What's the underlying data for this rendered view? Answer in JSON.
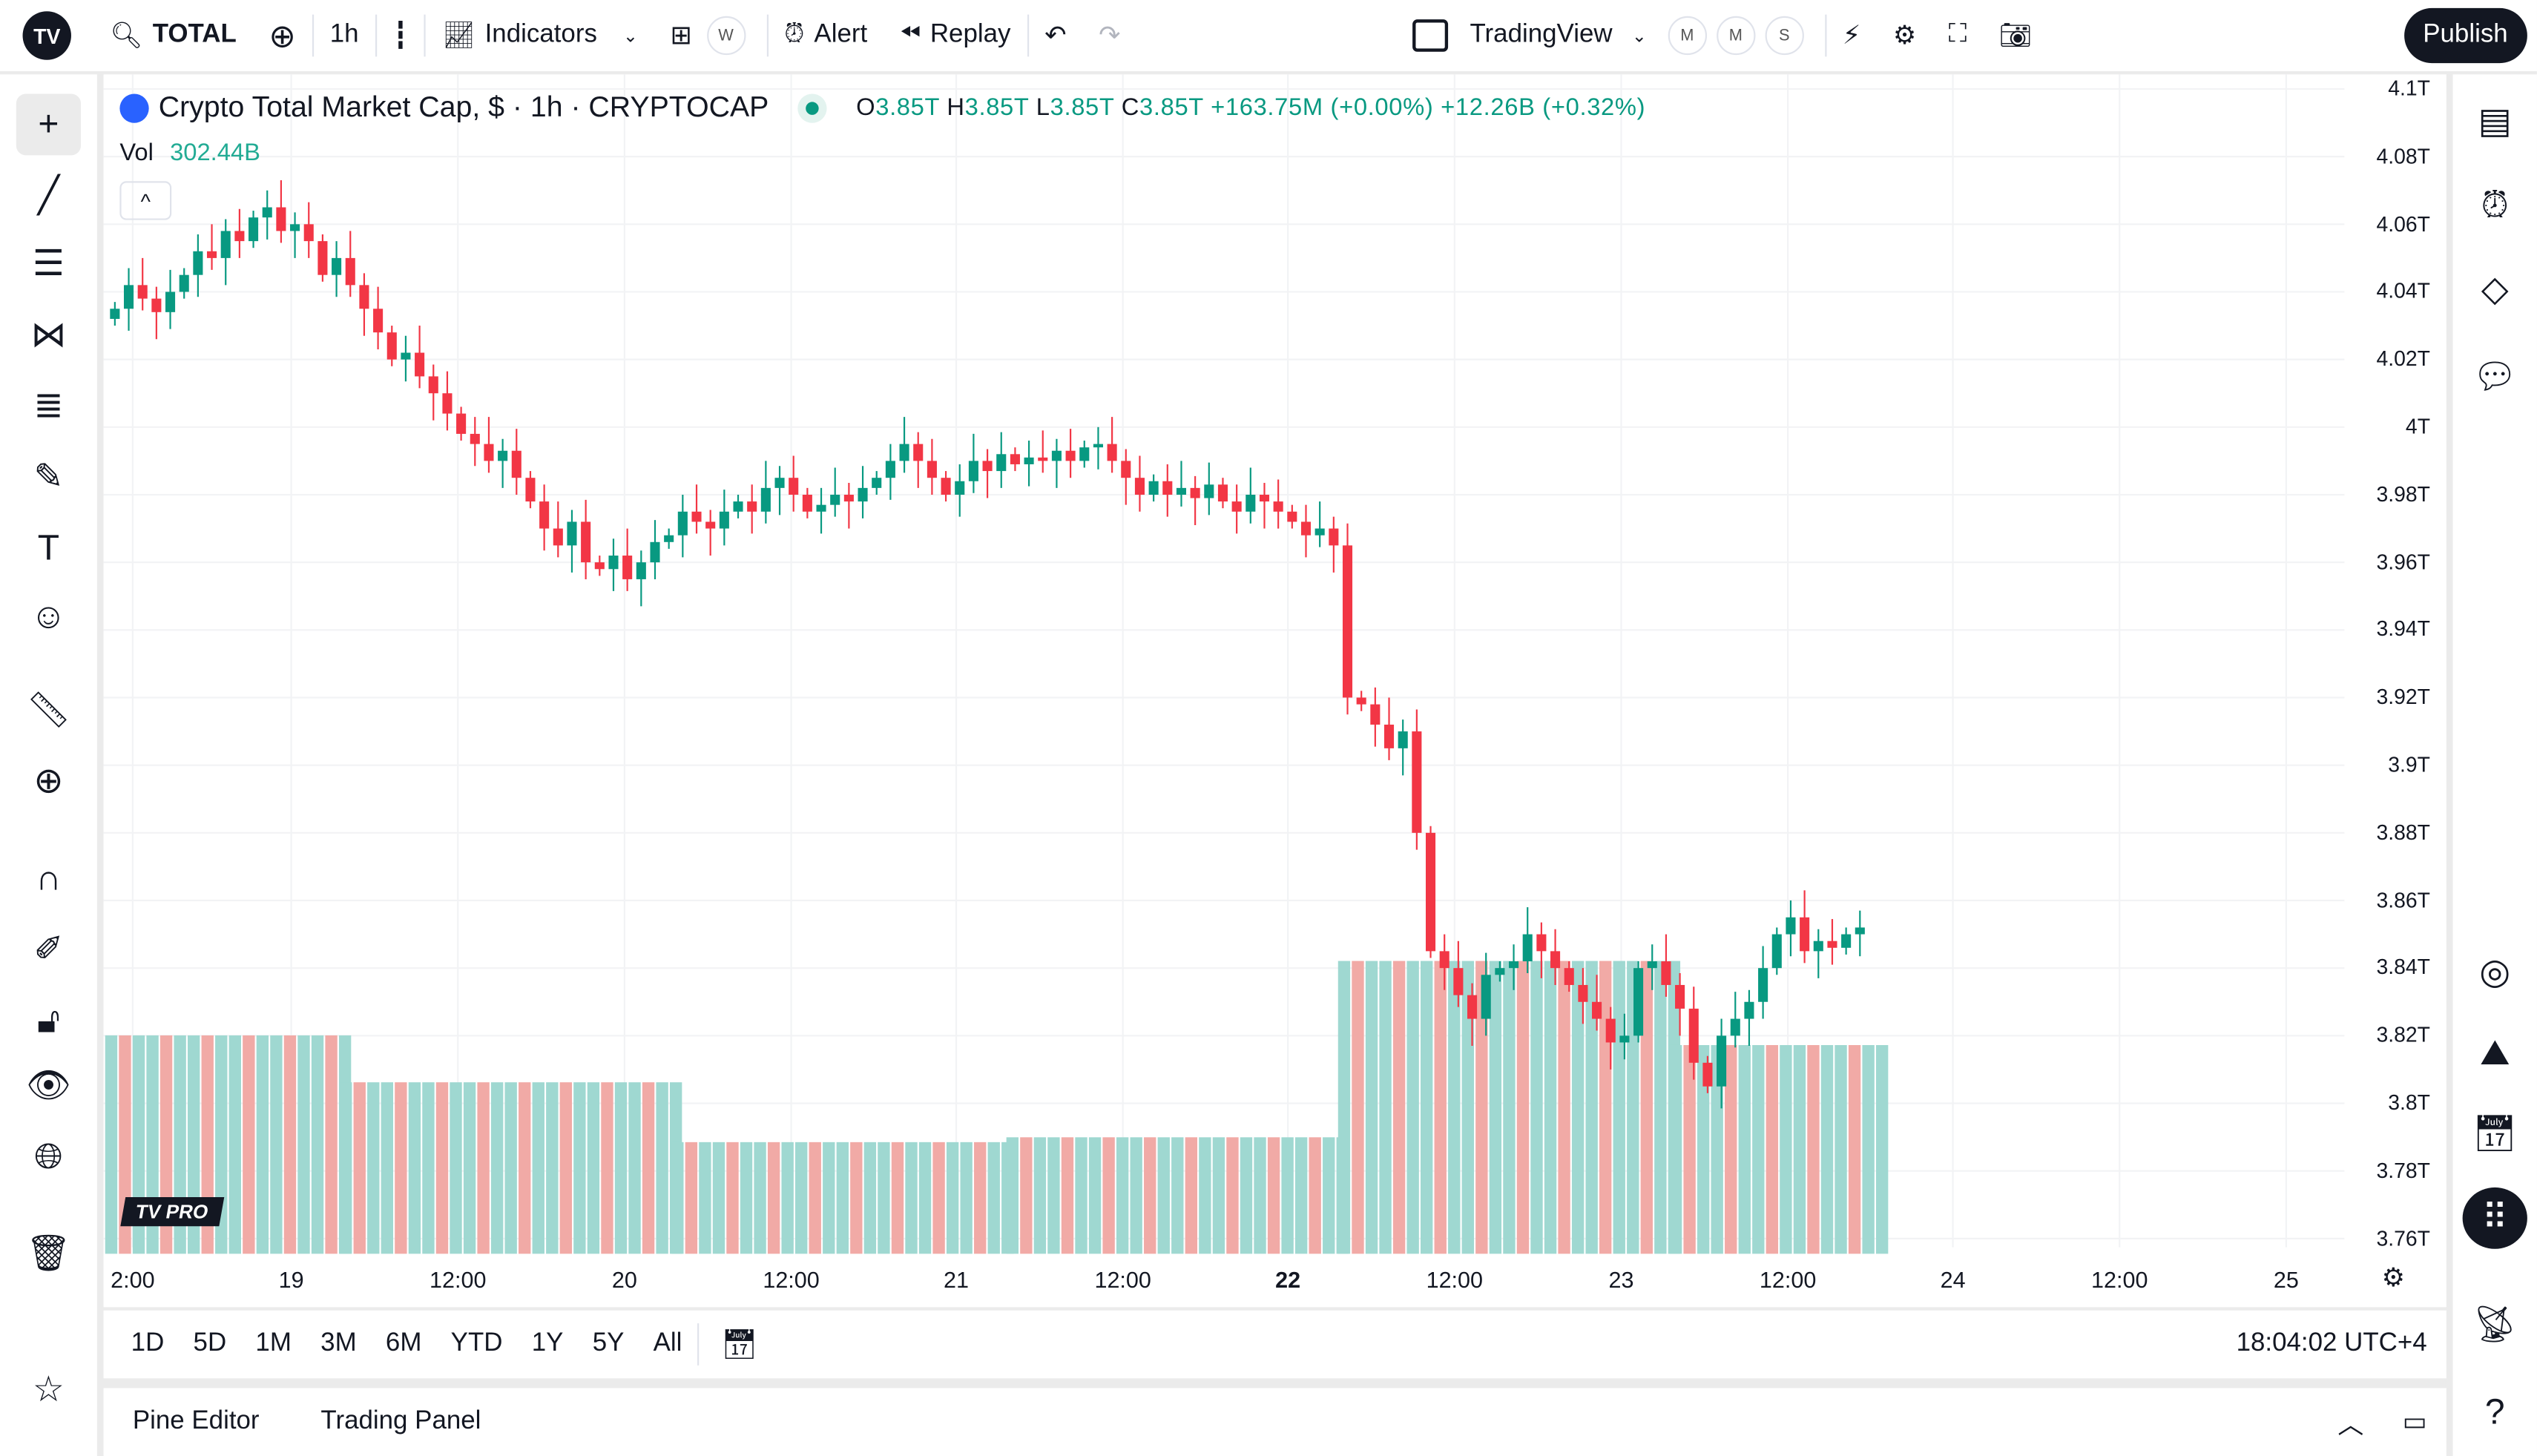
{
  "topbar": {
    "symbol": "TOTAL",
    "interval": "1h",
    "indicators": "Indicators",
    "w_badge": "W",
    "alert": "Alert",
    "replay": "Replay",
    "layout": "TradingView",
    "m1": "M",
    "m2": "M",
    "s": "S",
    "publish": "Publish",
    "logo": "TV"
  },
  "legend": {
    "title": "Crypto Total Market Cap, $ · 1h · CRYPTOCAP",
    "o_label": "O",
    "o": "3.85T",
    "h_label": "H",
    "h": "3.85T",
    "l_label": "L",
    "l": "3.85T",
    "c_label": "C",
    "c": "3.85T",
    "change": "+163.75M (+0.00%)",
    "change2": "+12.26B (+0.32%)",
    "vol_label": "Vol",
    "vol": "302.44B",
    "collapse": "^"
  },
  "badge": {
    "pro": "PRO"
  },
  "price_axis": [
    "4.1T",
    "4.08T",
    "4.06T",
    "4.04T",
    "4.02T",
    "4T",
    "3.98T",
    "3.96T",
    "3.94T",
    "3.92T",
    "3.9T",
    "3.88T",
    "3.86T",
    "3.84T",
    "3.82T",
    "3.8T",
    "3.78T",
    "3.76T"
  ],
  "time_axis": [
    {
      "label": "2:00",
      "bold": false
    },
    {
      "label": "19",
      "bold": false
    },
    {
      "label": "12:00",
      "bold": false
    },
    {
      "label": "20",
      "bold": false
    },
    {
      "label": "12:00",
      "bold": false
    },
    {
      "label": "21",
      "bold": false
    },
    {
      "label": "12:00",
      "bold": false
    },
    {
      "label": "22",
      "bold": true
    },
    {
      "label": "12:00",
      "bold": false
    },
    {
      "label": "23",
      "bold": false
    },
    {
      "label": "12:00",
      "bold": false
    },
    {
      "label": "24",
      "bold": false
    },
    {
      "label": "12:00",
      "bold": false
    },
    {
      "label": "25",
      "bold": false
    }
  ],
  "ranges": [
    "1D",
    "5D",
    "1M",
    "3M",
    "6M",
    "YTD",
    "1Y",
    "5Y",
    "All"
  ],
  "clock": "18:04:02 UTC+4",
  "panel": {
    "pine": "Pine Editor",
    "trading": "Trading Panel"
  },
  "colors": {
    "up": "#089981",
    "down": "#f23645",
    "vp_up": "#9fd8d1",
    "vp_down": "#f1aaa6"
  },
  "chart_data": {
    "type": "candlestick",
    "ylim": [
      3.755,
      4.105
    ],
    "unit": "T",
    "closes": [
      4.035,
      4.042,
      4.038,
      4.034,
      4.04,
      4.045,
      4.052,
      4.05,
      4.058,
      4.055,
      4.062,
      4.065,
      4.058,
      4.06,
      4.055,
      4.045,
      4.05,
      4.042,
      4.035,
      4.028,
      4.02,
      4.022,
      4.015,
      4.01,
      4.004,
      3.998,
      3.995,
      3.99,
      3.993,
      3.985,
      3.978,
      3.97,
      3.965,
      3.972,
      3.96,
      3.958,
      3.962,
      3.955,
      3.96,
      3.966,
      3.968,
      3.975,
      3.972,
      3.97,
      3.975,
      3.978,
      3.975,
      3.982,
      3.985,
      3.98,
      3.975,
      3.977,
      3.98,
      3.978,
      3.982,
      3.985,
      3.99,
      3.995,
      3.99,
      3.985,
      3.98,
      3.984,
      3.99,
      3.987,
      3.992,
      3.989,
      3.991,
      3.99,
      3.993,
      3.99,
      3.994,
      3.995,
      3.99,
      3.985,
      3.98,
      3.984,
      3.98,
      3.982,
      3.979,
      3.983,
      3.978,
      3.975,
      3.98,
      3.978,
      3.975,
      3.972,
      3.968,
      3.97,
      3.965,
      3.92,
      3.918,
      3.912,
      3.905,
      3.91,
      3.88,
      3.845,
      3.84,
      3.832,
      3.825,
      3.838,
      3.84,
      3.842,
      3.85,
      3.845,
      3.84,
      3.835,
      3.83,
      3.825,
      3.818,
      3.82,
      3.84,
      3.842,
      3.835,
      3.828,
      3.812,
      3.805,
      3.82,
      3.825,
      3.83,
      3.84,
      3.85,
      3.855,
      3.845,
      3.848,
      3.846,
      3.85,
      3.852
    ],
    "volume_profile_relative": [
      135,
      106,
      69,
      72,
      181,
      129
    ]
  }
}
